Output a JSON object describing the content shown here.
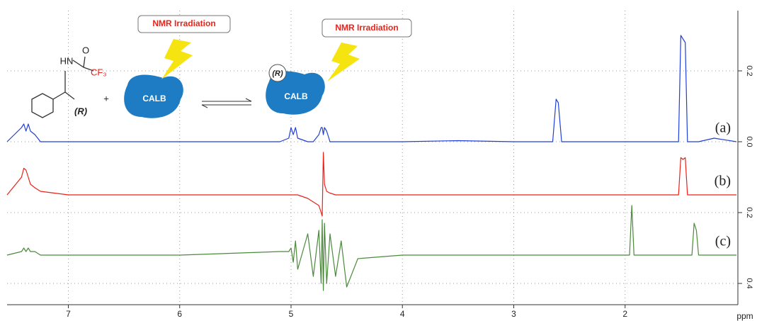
{
  "chart_data": {
    "type": "line",
    "x_label": "ppm",
    "xlim": [
      7.55,
      1.0
    ],
    "xticks": [
      7,
      6,
      5,
      4,
      3,
      2
    ],
    "ylim": [
      -0.46,
      0.37
    ],
    "yticks": [
      {
        "value": 0.2,
        "label": "0.2"
      },
      {
        "value": 0,
        "label": "0.0"
      },
      {
        "value": -0.2,
        "label": "0.2"
      },
      {
        "value": -0.4,
        "label": "0.4"
      }
    ],
    "grid": true,
    "x": [
      7.55,
      7.42,
      7.4,
      7.38,
      7.36,
      7.34,
      7.3,
      7.25,
      7.0,
      6.0,
      5.1,
      5.02,
      5.0,
      4.98,
      4.96,
      4.94,
      4.85,
      4.8,
      4.75,
      4.73,
      4.72,
      4.71,
      4.7,
      4.68,
      4.65,
      4.6,
      4.55,
      4.5,
      4.4,
      4.0,
      3.5,
      3.0,
      2.65,
      2.62,
      2.6,
      2.57,
      2.0,
      1.96,
      1.94,
      1.92,
      1.52,
      1.5,
      1.48,
      1.46,
      1.44,
      1.4,
      1.38,
      1.36,
      1.34,
      1.2,
      1.0
    ],
    "series": [
      {
        "name": "(a)",
        "color": "#1f3fd8",
        "values": [
          0,
          0.04,
          0.05,
          0.03,
          0.05,
          0.03,
          0.02,
          0,
          0,
          0,
          0,
          0.01,
          0.04,
          0.02,
          0.04,
          0.01,
          0,
          0,
          0.02,
          0.04,
          0.04,
          0.02,
          0.04,
          0.03,
          0,
          0,
          0,
          0,
          0,
          0,
          0.003,
          0,
          0,
          0.12,
          0.11,
          0,
          0,
          0,
          0,
          0,
          0,
          0.3,
          0.29,
          0.28,
          0,
          0,
          0,
          0,
          0,
          0.01,
          0
        ]
      },
      {
        "name": "(b)",
        "color": "#e8231a",
        "values": [
          -0.15,
          -0.1,
          -0.075,
          -0.08,
          -0.1,
          -0.12,
          -0.13,
          -0.14,
          -0.15,
          -0.15,
          -0.15,
          -0.15,
          -0.15,
          -0.15,
          -0.15,
          -0.15,
          -0.16,
          -0.17,
          -0.18,
          -0.2,
          -0.21,
          -0.03,
          -0.12,
          -0.14,
          -0.145,
          -0.15,
          -0.15,
          -0.15,
          -0.15,
          -0.15,
          -0.15,
          -0.15,
          -0.15,
          -0.15,
          -0.15,
          -0.15,
          -0.15,
          -0.15,
          -0.15,
          -0.15,
          -0.15,
          -0.045,
          -0.05,
          -0.045,
          -0.15,
          -0.15,
          -0.15,
          -0.15,
          -0.15,
          -0.15,
          -0.15
        ]
      },
      {
        "name": "(c)",
        "color": "#4a8a3a",
        "values": [
          -0.32,
          -0.31,
          -0.3,
          -0.31,
          -0.3,
          -0.31,
          -0.31,
          -0.32,
          -0.32,
          -0.32,
          -0.31,
          -0.31,
          -0.3,
          -0.34,
          -0.28,
          -0.36,
          -0.26,
          -0.38,
          -0.25,
          -0.4,
          -0.22,
          -0.42,
          -0.23,
          -0.4,
          -0.26,
          -0.38,
          -0.28,
          -0.41,
          -0.33,
          -0.32,
          -0.32,
          -0.32,
          -0.32,
          -0.32,
          -0.32,
          -0.32,
          -0.32,
          -0.32,
          -0.18,
          -0.32,
          -0.32,
          -0.32,
          -0.32,
          -0.32,
          -0.32,
          -0.32,
          -0.23,
          -0.25,
          -0.32,
          -0.32,
          -0.32
        ]
      }
    ],
    "scheme": {
      "irradiation": [
        "NMR Irradiation",
        "NMR Irradiation"
      ],
      "enzyme": [
        "CALB",
        "CALB"
      ],
      "config": [
        "(R)",
        "(R)"
      ],
      "atoms": [
        "HN",
        "O",
        "CF₃"
      ],
      "plus": "+"
    }
  }
}
